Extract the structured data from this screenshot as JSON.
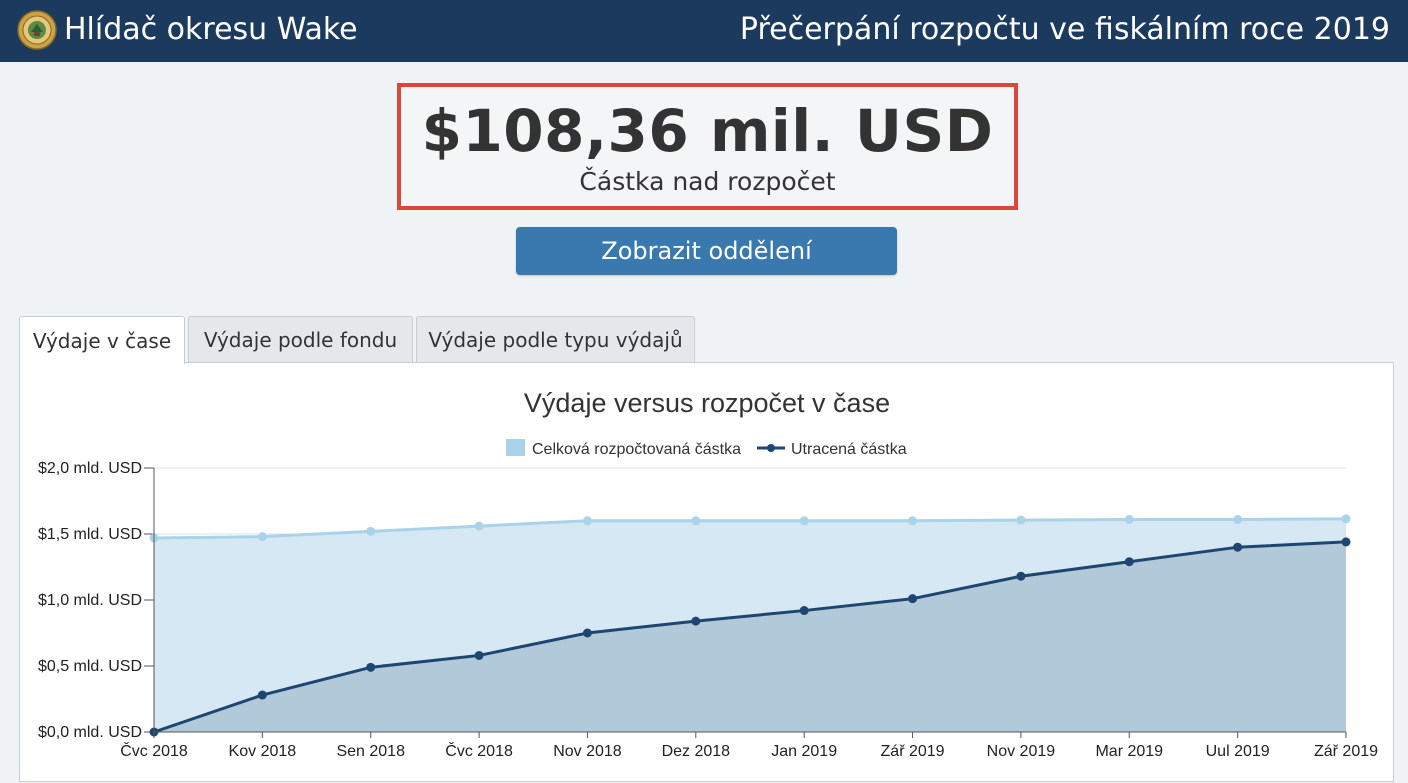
{
  "header": {
    "app_title": "Hlídač okresu Wake",
    "page_title": "Přečerpání rozpočtu ve fiskálním roce 2019"
  },
  "summary": {
    "amount": "$108,36 mil. USD",
    "label": "Částka nad rozpočet"
  },
  "button": {
    "label": "Zobrazit oddělení"
  },
  "tabs": [
    {
      "label": "Výdaje v čase",
      "active": true
    },
    {
      "label": "Výdaje podle fondu",
      "active": false
    },
    {
      "label": "Výdaje podle typu výdajů",
      "active": false
    }
  ],
  "colors": {
    "header_bg": "#1c3a5e",
    "alert_border": "#d9473a",
    "button_bg": "#3a78b0",
    "budget_series": "#a9d3e8",
    "spent_series": "#1f4670"
  },
  "chart_data": {
    "type": "area",
    "title": "Výdaje versus rozpočet v čase",
    "categories": [
      "Čvc 2018",
      "Kov 2018",
      "Sen 2018",
      "Čvc 2018",
      "Nov 2018",
      "Dez 2018",
      "Jan 2019",
      "Zář 2019",
      "Nov 2019",
      "Mar 2019",
      "Uul 2019",
      "Zář 2019"
    ],
    "series": [
      {
        "name": "Celková rozpočtovaná částka",
        "values": [
          1.47,
          1.48,
          1.52,
          1.56,
          1.6,
          1.6,
          1.6,
          1.6,
          1.605,
          1.61,
          1.61,
          1.615
        ]
      },
      {
        "name": "Utracená částka",
        "values": [
          0.0,
          0.28,
          0.49,
          0.58,
          0.75,
          0.84,
          0.92,
          1.01,
          1.18,
          1.29,
          1.4,
          1.44
        ]
      }
    ],
    "yticks": [
      "$0,0 mld. USD",
      "$0,5 mld. USD",
      "$1,0 mld. USD",
      "$1,5 mld. USD",
      "$2,0 mld. USD"
    ],
    "ylim": [
      0,
      2
    ],
    "grid": true,
    "legend": "top-center"
  }
}
